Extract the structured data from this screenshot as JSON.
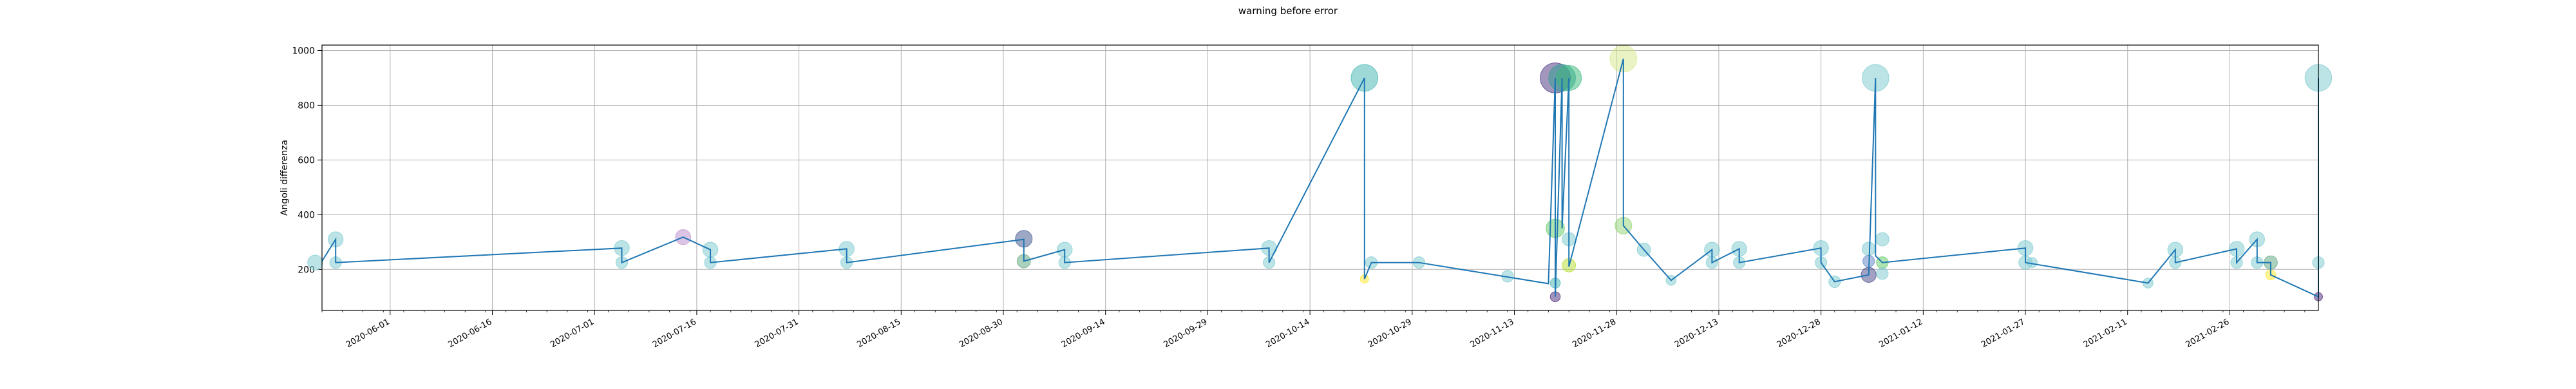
{
  "chart_data": {
    "type": "scatter",
    "title": "warning before error",
    "xlabel": "",
    "ylabel": "Angoli differenza",
    "xlim": [
      "2020-05-22",
      "2021-03-11"
    ],
    "ylim": [
      50,
      1020
    ],
    "y_ticks": [
      200,
      400,
      600,
      800,
      1000
    ],
    "x_ticks": [
      "2020-06-01",
      "2020-06-16",
      "2020-07-01",
      "2020-07-16",
      "2020-07-31",
      "2020-08-15",
      "2020-08-30",
      "2020-09-14",
      "2020-09-29",
      "2020-10-14",
      "2020-10-29",
      "2020-11-13",
      "2020-11-28",
      "2020-12-13",
      "2020-12-28",
      "2021-01-12",
      "2021-01-27",
      "2021-02-11",
      "2021-02-26"
    ],
    "grid": true,
    "line_color": "#1f77b4",
    "colormap": "viridis",
    "line": [
      {
        "x": "2020-05-22",
        "y": 230
      },
      {
        "x": "2020-05-24",
        "y": 310
      },
      {
        "x": "2020-05-24",
        "y": 225
      },
      {
        "x": "2020-07-05",
        "y": 278
      },
      {
        "x": "2020-07-05",
        "y": 225
      },
      {
        "x": "2020-07-14",
        "y": 318
      },
      {
        "x": "2020-07-18",
        "y": 272
      },
      {
        "x": "2020-07-18",
        "y": 225
      },
      {
        "x": "2020-08-07",
        "y": 275
      },
      {
        "x": "2020-08-07",
        "y": 225
      },
      {
        "x": "2020-09-02",
        "y": 310
      },
      {
        "x": "2020-09-02",
        "y": 230
      },
      {
        "x": "2020-09-08",
        "y": 272
      },
      {
        "x": "2020-09-08",
        "y": 225
      },
      {
        "x": "2020-10-08",
        "y": 278
      },
      {
        "x": "2020-10-08",
        "y": 225
      },
      {
        "x": "2020-10-22",
        "y": 900
      },
      {
        "x": "2020-10-22",
        "y": 165
      },
      {
        "x": "2020-10-23",
        "y": 225
      },
      {
        "x": "2020-10-30",
        "y": 225
      },
      {
        "x": "2020-11-18",
        "y": 148
      },
      {
        "x": "2020-11-19",
        "y": 900
      },
      {
        "x": "2020-11-19",
        "y": 100
      },
      {
        "x": "2020-11-20",
        "y": 900
      },
      {
        "x": "2020-11-20",
        "y": 350
      },
      {
        "x": "2020-11-21",
        "y": 900
      },
      {
        "x": "2020-11-21",
        "y": 210
      },
      {
        "x": "2020-11-29",
        "y": 970
      },
      {
        "x": "2020-11-29",
        "y": 360
      },
      {
        "x": "2020-12-02",
        "y": 272
      },
      {
        "x": "2020-12-06",
        "y": 160
      },
      {
        "x": "2020-12-12",
        "y": 272
      },
      {
        "x": "2020-12-12",
        "y": 225
      },
      {
        "x": "2020-12-16",
        "y": 275
      },
      {
        "x": "2020-12-16",
        "y": 225
      },
      {
        "x": "2020-12-28",
        "y": 278
      },
      {
        "x": "2020-12-28",
        "y": 225
      },
      {
        "x": "2020-12-30",
        "y": 155
      },
      {
        "x": "2021-01-04",
        "y": 180
      },
      {
        "x": "2021-01-05",
        "y": 900
      },
      {
        "x": "2021-01-05",
        "y": 250
      },
      {
        "x": "2021-01-06",
        "y": 225
      },
      {
        "x": "2021-01-27",
        "y": 278
      },
      {
        "x": "2021-01-27",
        "y": 225
      },
      {
        "x": "2021-02-14",
        "y": 150
      },
      {
        "x": "2021-02-18",
        "y": 272
      },
      {
        "x": "2021-02-18",
        "y": 225
      },
      {
        "x": "2021-02-27",
        "y": 275
      },
      {
        "x": "2021-02-27",
        "y": 225
      },
      {
        "x": "2021-03-02",
        "y": 310
      },
      {
        "x": "2021-03-02",
        "y": 225
      },
      {
        "x": "2021-03-04",
        "y": 225
      },
      {
        "x": "2021-03-04",
        "y": 180
      },
      {
        "x": "2021-03-11",
        "y": 100
      },
      {
        "x": "2021-03-11",
        "y": 900
      },
      {
        "x": "2021-03-11",
        "y": 225
      }
    ],
    "points": [
      {
        "x": "2020-05-21",
        "y": 225,
        "size": 9,
        "color": "#7ac9cf"
      },
      {
        "x": "2020-05-24",
        "y": 310,
        "size": 9,
        "color": "#7ac9cf"
      },
      {
        "x": "2020-05-24",
        "y": 225,
        "size": 7,
        "color": "#7ac9cf"
      },
      {
        "x": "2020-07-05",
        "y": 278,
        "size": 9,
        "color": "#7ac9cf"
      },
      {
        "x": "2020-07-05",
        "y": 225,
        "size": 7,
        "color": "#7ac9cf"
      },
      {
        "x": "2020-07-14",
        "y": 318,
        "size": 9,
        "color": "#b989c9"
      },
      {
        "x": "2020-07-18",
        "y": 272,
        "size": 9,
        "color": "#7ac9cf"
      },
      {
        "x": "2020-07-18",
        "y": 225,
        "size": 7,
        "color": "#7ac9cf"
      },
      {
        "x": "2020-08-07",
        "y": 275,
        "size": 9,
        "color": "#7ac9cf"
      },
      {
        "x": "2020-08-07",
        "y": 225,
        "size": 7,
        "color": "#7ac9cf"
      },
      {
        "x": "2020-09-02",
        "y": 312,
        "size": 10,
        "color": "#3b528b"
      },
      {
        "x": "2020-09-02",
        "y": 230,
        "size": 8,
        "color": "#5aa37a"
      },
      {
        "x": "2020-09-08",
        "y": 272,
        "size": 9,
        "color": "#7ac9cf"
      },
      {
        "x": "2020-09-08",
        "y": 225,
        "size": 7,
        "color": "#7ac9cf"
      },
      {
        "x": "2020-10-08",
        "y": 278,
        "size": 9,
        "color": "#7ac9cf"
      },
      {
        "x": "2020-10-08",
        "y": 225,
        "size": 7,
        "color": "#7ac9cf"
      },
      {
        "x": "2020-10-22",
        "y": 900,
        "size": 16,
        "color": "#3fb3b0"
      },
      {
        "x": "2020-10-22",
        "y": 165,
        "size": 5,
        "color": "#fde725"
      },
      {
        "x": "2020-10-23",
        "y": 225,
        "size": 7,
        "color": "#7ac9cf"
      },
      {
        "x": "2020-10-30",
        "y": 225,
        "size": 7,
        "color": "#7ac9cf"
      },
      {
        "x": "2020-11-12",
        "y": 175,
        "size": 7,
        "color": "#7ac9cf"
      },
      {
        "x": "2020-11-19",
        "y": 900,
        "size": 18,
        "color": "#472d7b"
      },
      {
        "x": "2020-11-19",
        "y": 350,
        "size": 11,
        "color": "#5ec962"
      },
      {
        "x": "2020-11-19",
        "y": 150,
        "size": 6,
        "color": "#3fb3b0"
      },
      {
        "x": "2020-11-19",
        "y": 100,
        "size": 6,
        "color": "#482878"
      },
      {
        "x": "2020-11-20",
        "y": 900,
        "size": 16,
        "color": "#2a9d8f"
      },
      {
        "x": "2020-11-21",
        "y": 900,
        "size": 15,
        "color": "#35b779"
      },
      {
        "x": "2020-11-21",
        "y": 310,
        "size": 8,
        "color": "#7ac9cf"
      },
      {
        "x": "2020-11-21",
        "y": 215,
        "size": 8,
        "color": "#b5de2b"
      },
      {
        "x": "2020-11-29",
        "y": 970,
        "size": 16,
        "color": "#d4e88a"
      },
      {
        "x": "2020-11-29",
        "y": 360,
        "size": 10,
        "color": "#8fd470"
      },
      {
        "x": "2020-12-02",
        "y": 272,
        "size": 8,
        "color": "#7ac9cf"
      },
      {
        "x": "2020-12-06",
        "y": 160,
        "size": 6,
        "color": "#7ac9cf"
      },
      {
        "x": "2020-12-12",
        "y": 272,
        "size": 9,
        "color": "#7ac9cf"
      },
      {
        "x": "2020-12-12",
        "y": 225,
        "size": 7,
        "color": "#7ac9cf"
      },
      {
        "x": "2020-12-16",
        "y": 275,
        "size": 9,
        "color": "#7ac9cf"
      },
      {
        "x": "2020-12-16",
        "y": 225,
        "size": 7,
        "color": "#7ac9cf"
      },
      {
        "x": "2020-12-28",
        "y": 278,
        "size": 9,
        "color": "#7ac9cf"
      },
      {
        "x": "2020-12-28",
        "y": 225,
        "size": 7,
        "color": "#7ac9cf"
      },
      {
        "x": "2020-12-30",
        "y": 155,
        "size": 7,
        "color": "#7ac9cf"
      },
      {
        "x": "2021-01-04",
        "y": 180,
        "size": 9,
        "color": "#414487"
      },
      {
        "x": "2021-01-04",
        "y": 230,
        "size": 7,
        "color": "#5b82c4"
      },
      {
        "x": "2021-01-04",
        "y": 275,
        "size": 8,
        "color": "#7ac9cf"
      },
      {
        "x": "2021-01-05",
        "y": 900,
        "size": 16,
        "color": "#7ac9cf"
      },
      {
        "x": "2021-01-06",
        "y": 310,
        "size": 8,
        "color": "#7ac9cf"
      },
      {
        "x": "2021-01-06",
        "y": 225,
        "size": 7,
        "color": "#5ec962"
      },
      {
        "x": "2021-01-06",
        "y": 185,
        "size": 7,
        "color": "#7ac9cf"
      },
      {
        "x": "2021-01-27",
        "y": 278,
        "size": 9,
        "color": "#7ac9cf"
      },
      {
        "x": "2021-01-27",
        "y": 225,
        "size": 8,
        "color": "#7ac9cf"
      },
      {
        "x": "2021-01-28",
        "y": 225,
        "size": 6,
        "color": "#7ac9cf"
      },
      {
        "x": "2021-02-14",
        "y": 150,
        "size": 6,
        "color": "#7ac9cf"
      },
      {
        "x": "2021-02-18",
        "y": 272,
        "size": 9,
        "color": "#7ac9cf"
      },
      {
        "x": "2021-02-18",
        "y": 225,
        "size": 7,
        "color": "#7ac9cf"
      },
      {
        "x": "2021-02-27",
        "y": 275,
        "size": 9,
        "color": "#7ac9cf"
      },
      {
        "x": "2021-02-27",
        "y": 225,
        "size": 7,
        "color": "#7ac9cf"
      },
      {
        "x": "2021-03-02",
        "y": 310,
        "size": 9,
        "color": "#7ac9cf"
      },
      {
        "x": "2021-03-02",
        "y": 225,
        "size": 7,
        "color": "#7ac9cf"
      },
      {
        "x": "2021-03-04",
        "y": 225,
        "size": 8,
        "color": "#5aa37a"
      },
      {
        "x": "2021-03-04",
        "y": 180,
        "size": 6,
        "color": "#fde725"
      },
      {
        "x": "2021-03-11",
        "y": 900,
        "size": 16,
        "color": "#7ac9cf"
      },
      {
        "x": "2021-03-11",
        "y": 225,
        "size": 7,
        "color": "#7ac9cf"
      },
      {
        "x": "2021-03-11",
        "y": 100,
        "size": 5,
        "color": "#482878"
      }
    ]
  }
}
